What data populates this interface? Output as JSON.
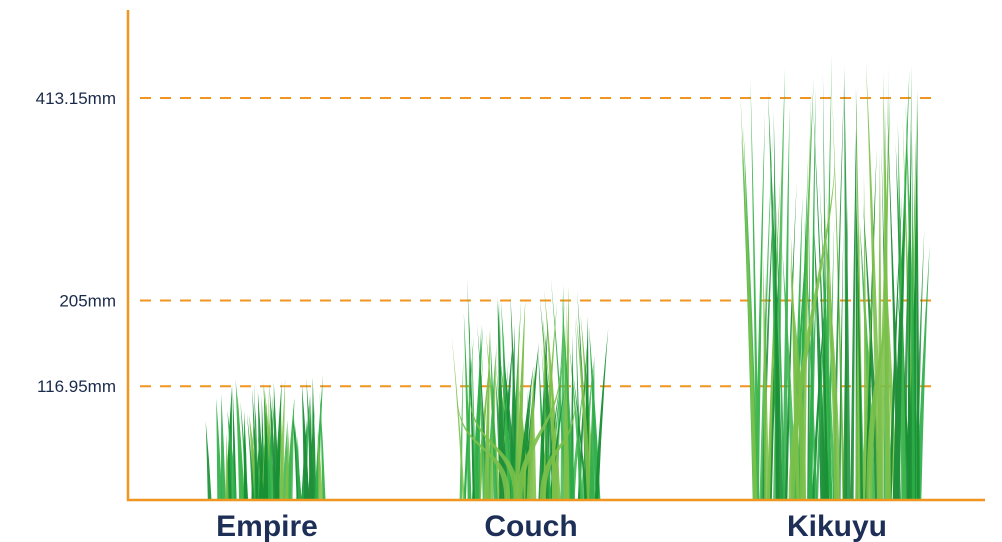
{
  "chart_data": {
    "type": "bar",
    "title": "",
    "xlabel": "",
    "ylabel": "",
    "categories": [
      "Empire",
      "Couch",
      "Kikuyu"
    ],
    "values": [
      116.95,
      205,
      413.15
    ],
    "y_ticks": [
      {
        "value": 116.95,
        "label": "116.95mm"
      },
      {
        "value": 205,
        "label": "205mm"
      },
      {
        "value": 413.15,
        "label": "413.15mm"
      }
    ],
    "ylim": [
      0,
      413.15
    ],
    "grid": "dashed reference lines at tick values",
    "bar_style": "grass",
    "colors": {
      "axis": "#f0951f",
      "grid": "#f0951f",
      "grass_dark": "#1f8f3a",
      "grass_mid": "#2fae4a",
      "grass_light": "#7cc04a",
      "label": "#1e2f57"
    }
  }
}
